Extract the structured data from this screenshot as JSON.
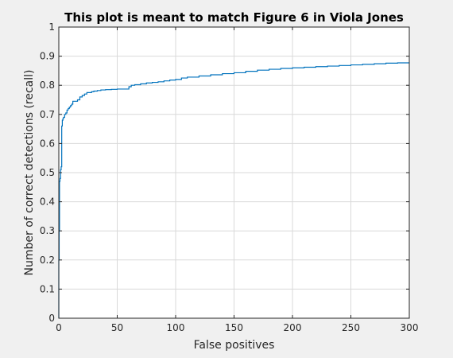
{
  "chart_data": {
    "type": "line",
    "title": "This plot is meant to match Figure 6 in Viola Jones",
    "xlabel": "False positives",
    "ylabel": "Number of correct detections (recall)",
    "xlim": [
      0,
      300
    ],
    "ylim": [
      0,
      1
    ],
    "xticks": [
      0,
      50,
      100,
      150,
      200,
      250,
      300
    ],
    "yticks": [
      0,
      0.1,
      0.2,
      0.3,
      0.4,
      0.5,
      0.6,
      0.7,
      0.8,
      0.9,
      1
    ],
    "xtick_labels": [
      "0",
      "50",
      "100",
      "150",
      "200",
      "250",
      "300"
    ],
    "ytick_labels": [
      "0",
      "0.1",
      "0.2",
      "0.3",
      "0.4",
      "0.5",
      "0.6",
      "0.7",
      "0.8",
      "0.9",
      "1"
    ],
    "grid": true,
    "line_style": "stairs",
    "series": [
      {
        "color": "#0072bd",
        "x": [
          0,
          0,
          0.3,
          0.6,
          1,
          1.5,
          2,
          2.5,
          3,
          3.5,
          4,
          5,
          6,
          7,
          8,
          9,
          10,
          11,
          12,
          13,
          14,
          16,
          18,
          20,
          22,
          24,
          26,
          28,
          30,
          33,
          36,
          40,
          45,
          50,
          55,
          60,
          62,
          65,
          70,
          75,
          80,
          85,
          90,
          95,
          100,
          105,
          110,
          120,
          130,
          140,
          150,
          160,
          170,
          180,
          190,
          200,
          210,
          220,
          230,
          240,
          250,
          260,
          270,
          280,
          290,
          300
        ],
        "y": [
          0,
          0.2,
          0.3,
          0.47,
          0.48,
          0.51,
          0.52,
          0.66,
          0.68,
          0.685,
          0.69,
          0.7,
          0.705,
          0.715,
          0.72,
          0.725,
          0.73,
          0.735,
          0.745,
          0.745,
          0.745,
          0.75,
          0.76,
          0.765,
          0.77,
          0.775,
          0.775,
          0.778,
          0.78,
          0.782,
          0.784,
          0.785,
          0.786,
          0.787,
          0.787,
          0.795,
          0.8,
          0.802,
          0.805,
          0.808,
          0.81,
          0.812,
          0.815,
          0.818,
          0.82,
          0.825,
          0.828,
          0.832,
          0.836,
          0.84,
          0.843,
          0.848,
          0.852,
          0.855,
          0.858,
          0.86,
          0.862,
          0.864,
          0.866,
          0.868,
          0.87,
          0.872,
          0.874,
          0.876,
          0.877,
          0.877
        ]
      }
    ]
  }
}
